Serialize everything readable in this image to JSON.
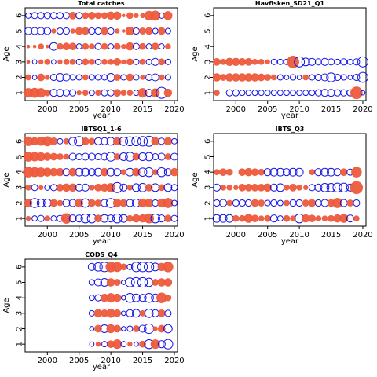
{
  "colors": {
    "positive": "#ed5a3c",
    "negative": "#1414e6"
  },
  "chart_data": [
    {
      "type": "scatter",
      "title": "Total catches",
      "xlabel": "year",
      "ylabel": "Age",
      "xlim": [
        1996.5,
        2020.5
      ],
      "ylim": [
        0.5,
        6.5
      ],
      "xticks": [
        2000,
        2005,
        2010,
        2015,
        2020
      ],
      "yticks": [
        1,
        2,
        3,
        4,
        5,
        6
      ],
      "grid": false,
      "years": [
        1997,
        1998,
        1999,
        2000,
        2001,
        2002,
        2003,
        2004,
        2005,
        2006,
        2007,
        2008,
        2009,
        2010,
        2011,
        2012,
        2013,
        2014,
        2015,
        2016,
        2017,
        2018,
        2019,
        2020
      ],
      "residuals": {
        "1": [
          0.8,
          0.9,
          0.8,
          0.4,
          -0.5,
          -0.5,
          -0.4,
          -0.4,
          0.2,
          0.3,
          -0.3,
          0.3,
          -0.4,
          -0.4,
          0.5,
          0.3,
          0.3,
          -0.3,
          0.8,
          -0.5,
          0.7,
          -1.2,
          0.6,
          0
        ],
        "2": [
          0.3,
          -0.2,
          0.5,
          0.2,
          -0.4,
          -0.6,
          -0.5,
          -0.3,
          -0.3,
          0.3,
          -0.3,
          -0.3,
          -0.3,
          -0.6,
          0.4,
          -0.3,
          0.5,
          -0.3,
          0.2,
          -0.4,
          -0.5,
          0.3,
          -0.3,
          0
        ],
        "3": [
          0.1,
          -0.2,
          0.2,
          0.3,
          -0.2,
          0.2,
          0.3,
          0.3,
          -0.3,
          0.4,
          0.3,
          -0.3,
          0.3,
          0.3,
          0.5,
          0.2,
          0.4,
          -0.3,
          0.3,
          -0.3,
          -0.5,
          0.4,
          -0.3,
          0
        ],
        "4": [
          0.1,
          0.1,
          0.3,
          0.1,
          -0.6,
          0.4,
          0.5,
          0.5,
          -0.3,
          0.4,
          0.3,
          -0.4,
          0.4,
          -0.3,
          0.4,
          0.2,
          0.6,
          -0.4,
          0.4,
          -0.3,
          0.5,
          -0.3,
          0.3,
          0
        ],
        "5": [
          -0.5,
          -0.5,
          -0.5,
          -0.5,
          0.2,
          -0.4,
          -0.4,
          0.2,
          0.5,
          0.5,
          -0.4,
          -0.4,
          0.5,
          -0.4,
          0.2,
          0.1,
          0.7,
          -0.4,
          0.4,
          0.5,
          -0.3,
          0.5,
          -0.3,
          0
        ],
        "6": [
          -0.3,
          -0.4,
          -0.4,
          -0.4,
          -0.4,
          -0.4,
          -0.4,
          0.5,
          -0.4,
          0.4,
          0.5,
          0.4,
          0.4,
          0.6,
          0.6,
          0.1,
          0.4,
          0.2,
          0.2,
          0.8,
          0.9,
          -0.3,
          0.7,
          0
        ]
      }
    },
    {
      "type": "scatter",
      "title": "Havfisken_SD21_Q1",
      "xlabel": "year",
      "ylabel": "Age",
      "xlim": [
        1996.5,
        2020.5
      ],
      "ylim": [
        0.5,
        6.5
      ],
      "xticks": [
        2000,
        2005,
        2010,
        2015,
        2020
      ],
      "yticks": [
        1,
        2,
        3,
        4,
        5,
        6
      ],
      "grid": false,
      "years": [
        1997,
        1998,
        1999,
        2000,
        2001,
        2002,
        2003,
        2004,
        2005,
        2006,
        2007,
        2008,
        2009,
        2010,
        2011,
        2012,
        2013,
        2014,
        2015,
        2016,
        2017,
        2018,
        2019,
        2020
      ],
      "residuals": {
        "1": [
          0.3,
          0,
          -0.4,
          -0.4,
          -0.3,
          -0.3,
          -0.3,
          -0.3,
          -0.3,
          -0.3,
          -0.3,
          -0.3,
          -0.3,
          -0.3,
          -0.3,
          -0.3,
          -0.4,
          -0.5,
          -0.5,
          -0.4,
          -0.4,
          -0.4,
          1.4,
          -0.2
        ],
        "2": [
          0.6,
          0.4,
          0.6,
          0.6,
          0.6,
          0.6,
          0.6,
          0.5,
          0.4,
          0.3,
          -0.3,
          -0.2,
          -0.3,
          -0.2,
          0.3,
          -0.3,
          -0.4,
          -0.5,
          -0.8,
          -0.4,
          -0.3,
          -0.2,
          -0.4,
          -1.0
        ],
        "3": [
          0.5,
          0.3,
          0.6,
          0.6,
          0.5,
          0.5,
          0.3,
          0.3,
          0.2,
          -0.3,
          -0.3,
          -0.3,
          1.4,
          -1.0,
          -0.6,
          -0.5,
          -0.4,
          -0.5,
          -0.4,
          -0.3,
          -0.4,
          -0.3,
          -0.4,
          -1.0
        ]
      }
    },
    {
      "type": "scatter",
      "title": "IBTSQ1_1-6",
      "xlabel": "year",
      "ylabel": "Age",
      "xlim": [
        1996.5,
        2020.5
      ],
      "ylim": [
        0.5,
        6.5
      ],
      "xticks": [
        2000,
        2005,
        2010,
        2015,
        2020
      ],
      "yticks": [
        1,
        2,
        3,
        4,
        5,
        6
      ],
      "grid": false,
      "years": [
        1997,
        1998,
        1999,
        2000,
        2001,
        2002,
        2003,
        2004,
        2005,
        2006,
        2007,
        2008,
        2009,
        2010,
        2011,
        2012,
        2013,
        2014,
        2015,
        2016,
        2017,
        2018,
        2019,
        2020
      ],
      "residuals": {
        "1": [
          0.2,
          -0.3,
          -0.4,
          0.3,
          -0.3,
          -0.4,
          1.0,
          -0.5,
          -0.5,
          -0.8,
          -0.8,
          0.5,
          -0.6,
          -0.5,
          -0.8,
          -0.6,
          0.4,
          0.6,
          0.6,
          0.9,
          -0.8,
          -0.5,
          0.5,
          -0.4
        ],
        "2": [
          0.6,
          -0.8,
          -0.6,
          -0.6,
          0.5,
          0.3,
          -0.5,
          -0.5,
          0.6,
          -0.7,
          0.5,
          0.4,
          -0.5,
          -0.8,
          0.6,
          0.5,
          -0.5,
          -0.6,
          0.7,
          0.6,
          -0.4,
          0.7,
          0.9,
          -0.3
        ],
        "3": [
          0.3,
          -0.4,
          0.2,
          -0.3,
          -0.4,
          0.5,
          0.6,
          0.6,
          -0.5,
          -0.5,
          0.3,
          0.5,
          0.6,
          0.7,
          -1.0,
          -0.5,
          0.3,
          -0.6,
          -0.7,
          0.5,
          -0.6,
          0.4,
          -0.6,
          -0.4
        ],
        "4": [
          1.0,
          0.9,
          0.8,
          0.7,
          0.6,
          0.6,
          -0.5,
          0.6,
          -0.6,
          -0.6,
          -0.5,
          -0.6,
          0.6,
          -0.6,
          -0.5,
          0.3,
          -0.6,
          0.6,
          -0.7,
          -0.8,
          0.3,
          -0.8,
          -0.5,
          0.6
        ],
        "5": [
          0.9,
          0.8,
          0.7,
          0.6,
          0.5,
          0.4,
          0.3,
          -0.5,
          -0.4,
          -0.5,
          -0.5,
          -0.4,
          -0.5,
          -0.8,
          0.4,
          -0.6,
          -0.8,
          0.5,
          -0.6,
          -0.7,
          -0.4,
          -0.5,
          0.4,
          -0.5
        ],
        "6": [
          0.8,
          0.6,
          0.7,
          0.9,
          0.5,
          -0.3,
          0.3,
          -0.6,
          -0.9,
          0.5,
          0.4,
          -0.5,
          -0.5,
          -0.6,
          0.6,
          -0.7,
          -0.8,
          -0.8,
          -0.9,
          -1.0,
          0.6,
          -0.4,
          0.6,
          -0.3
        ]
      }
    },
    {
      "type": "scatter",
      "title": "IBTS_Q3",
      "xlabel": "year",
      "ylabel": "Age",
      "xlim": [
        1996.5,
        2020.5
      ],
      "ylim": [
        0.5,
        6.5
      ],
      "xticks": [
        2000,
        2005,
        2010,
        2015,
        2020
      ],
      "yticks": [
        1,
        2,
        3,
        4,
        5,
        6
      ],
      "grid": false,
      "years": [
        1997,
        1998,
        1999,
        2000,
        2001,
        2002,
        2003,
        2004,
        2005,
        2006,
        2007,
        2008,
        2009,
        2010,
        2011,
        2012,
        2013,
        2014,
        2015,
        2016,
        2017,
        2018,
        2019
      ],
      "residuals": {
        "1": [
          -0.6,
          -0.6,
          -0.6,
          0.4,
          0.4,
          0.7,
          0.5,
          0.3,
          0.4,
          -0.5,
          -0.3,
          0.4,
          0.3,
          -0.8,
          0.6,
          0.5,
          0.3,
          0.3,
          0.4,
          0.6,
          0.7,
          -0.5,
          0.3
        ],
        "2": [
          -0.4,
          -0.5,
          0.3,
          -0.4,
          -0.4,
          -0.4,
          0.5,
          0.4,
          -0.3,
          -0.4,
          -0.3,
          0.3,
          -0.4,
          -0.4,
          0.4,
          0.5,
          -0.4,
          -0.5,
          0.5,
          0.9,
          -0.5,
          0.4,
          -0.4
        ],
        "3": [
          -0.5,
          0.3,
          0.3,
          0.2,
          0.5,
          0.5,
          0.5,
          0.5,
          0.6,
          -0.5,
          -0.6,
          0.3,
          0.5,
          0.3,
          0.2,
          -0.4,
          -0.5,
          -0.7,
          -0.7,
          -0.8,
          -0.8,
          -0.5,
          1.5
        ],
        "4": [
          0.3,
          0.5,
          0.4,
          0,
          0.5,
          0.6,
          0.5,
          0.4,
          -0.5,
          -0.6,
          -0.6,
          -0.5,
          -0.6,
          -0.6,
          0,
          0.3,
          -0.5,
          -0.6,
          -0.6,
          -0.5,
          0.5,
          -0.4,
          1.0
        ]
      }
    },
    {
      "type": "scatter",
      "title": "CODS_Q4",
      "xlabel": "year",
      "ylabel": "Age",
      "xlim": [
        1996.5,
        2020.5
      ],
      "ylim": [
        0.5,
        6.5
      ],
      "xticks": [
        2000,
        2005,
        2010,
        2015,
        2020
      ],
      "yticks": [
        1,
        2,
        3,
        4,
        5,
        6
      ],
      "grid": false,
      "years": [
        2007,
        2008,
        2009,
        2010,
        2011,
        2012,
        2013,
        2014,
        2015,
        2016,
        2017,
        2018,
        2019
      ],
      "residuals": {
        "1": [
          -0.2,
          0.2,
          -0.3,
          0.5,
          0.8,
          -0.3,
          0.2,
          -0.2,
          0.4,
          -0.8,
          0.8,
          -0.5,
          -0.9
        ],
        "2": [
          -0.2,
          0.5,
          -0.6,
          0.7,
          0.5,
          -0.2,
          -0.3,
          0.4,
          -0.5,
          -0.9,
          0.2,
          0.5,
          -0.7
        ],
        "3": [
          -0.3,
          0.6,
          0.5,
          0.7,
          0.5,
          -0.2,
          -0.5,
          -0.6,
          0.3,
          -0.7,
          -0.5,
          0.5,
          -0.4
        ],
        "4": [
          -0.3,
          -0.4,
          0.6,
          0.8,
          0.6,
          -0.2,
          -0.8,
          -0.6,
          -0.5,
          -0.8,
          -0.6,
          1.0,
          0.4
        ],
        "5": [
          -0.3,
          -0.5,
          -0.6,
          0.6,
          0.4,
          -0.2,
          -0.8,
          -0.9,
          -0.9,
          -0.7,
          0.4,
          0.6,
          0.6
        ],
        "6": [
          -0.5,
          -0.7,
          -0.9,
          1.0,
          0.9,
          0.4,
          -0.3,
          -0.9,
          -0.9,
          -0.9,
          -0.6,
          0.6,
          1.0
        ]
      }
    }
  ]
}
